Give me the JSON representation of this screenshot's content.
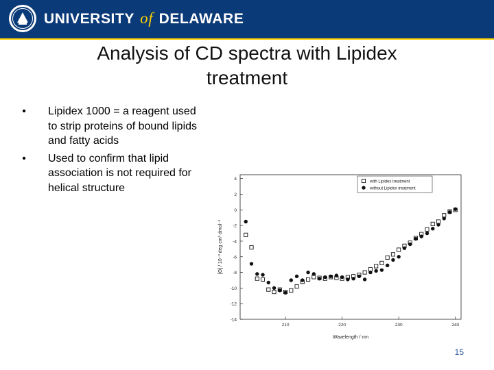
{
  "header": {
    "brand_part1": "UNIVERSITY",
    "brand_of": "of",
    "brand_part2": "DELAWARE",
    "colors": {
      "bar": "#0b3a78",
      "accent": "#ffd200"
    },
    "seal_icon": "university-seal-icon"
  },
  "slide": {
    "title": "Analysis of CD spectra with Lipidex treatment",
    "bullets": [
      {
        "marker": "•",
        "text": "Lipidex 1000 = a reagent used to strip proteins of bound lipids and fatty acids"
      },
      {
        "marker": "•",
        "text": "Used to confirm that lipid association is not required for helical structure"
      }
    ],
    "page_number": "15"
  },
  "chart_data": {
    "type": "scatter",
    "xlabel": "Wavelength / nm",
    "ylabel": "[Θ] / 10⁻³ deg cm² dmol⁻¹",
    "xlim": [
      202,
      241
    ],
    "ylim": [
      -14,
      4.5
    ],
    "x_ticks": [
      210,
      220,
      230,
      240
    ],
    "y_ticks": [
      4,
      2,
      0,
      -2,
      -4,
      -6,
      -8,
      -10,
      -12,
      -14
    ],
    "grid": false,
    "legend_position": "top-right",
    "series": [
      {
        "name": "with Lipidex treatment",
        "marker": "open-square",
        "x": [
          203,
          204,
          205,
          206,
          207,
          208,
          209,
          210,
          211,
          212,
          213,
          214,
          215,
          216,
          217,
          218,
          219,
          220,
          221,
          222,
          223,
          224,
          225,
          226,
          227,
          228,
          229,
          230,
          231,
          232,
          233,
          234,
          235,
          236,
          237,
          238,
          239,
          240
        ],
        "y": [
          -3.2,
          -4.8,
          -8.8,
          -8.9,
          -10.2,
          -10.5,
          -10.2,
          -10.5,
          -10.3,
          -9.8,
          -9.2,
          -8.9,
          -8.6,
          -8.7,
          -8.8,
          -8.6,
          -8.7,
          -8.8,
          -8.6,
          -8.5,
          -8.3,
          -8.0,
          -7.6,
          -7.2,
          -6.8,
          -6.1,
          -5.7,
          -5.1,
          -4.6,
          -4.2,
          -3.6,
          -3.1,
          -2.5,
          -1.8,
          -1.5,
          -0.7,
          -0.2,
          0.0
        ]
      },
      {
        "name": "without Lipidex treatment",
        "marker": "filled-circle",
        "x": [
          203,
          204,
          205,
          206,
          207,
          208,
          209,
          210,
          211,
          212,
          213,
          214,
          215,
          216,
          217,
          218,
          219,
          220,
          221,
          222,
          223,
          224,
          225,
          226,
          227,
          228,
          229,
          230,
          231,
          232,
          233,
          234,
          235,
          236,
          237,
          238,
          239,
          240
        ],
        "y": [
          -1.5,
          -6.9,
          -8.2,
          -8.3,
          -9.3,
          -10.0,
          -10.3,
          -10.6,
          -9.0,
          -8.5,
          -9.0,
          -8.0,
          -8.2,
          -8.8,
          -8.6,
          -8.5,
          -8.4,
          -8.6,
          -8.9,
          -8.8,
          -8.5,
          -8.9,
          -8.0,
          -7.8,
          -7.7,
          -7.1,
          -6.4,
          -6.0,
          -4.9,
          -4.4,
          -3.7,
          -3.4,
          -3.0,
          -2.4,
          -1.9,
          -1.1,
          -0.3,
          0.1
        ]
      }
    ]
  }
}
